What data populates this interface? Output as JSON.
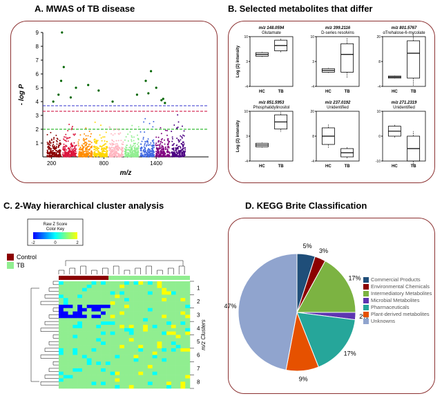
{
  "panelA": {
    "title": "A.  MWAS of TB disease",
    "xlabel": "m/z",
    "ylabel": "- log P",
    "xlim": [
      100,
      2000
    ],
    "ylim": [
      0,
      9
    ],
    "xticks": [
      200,
      800,
      1400
    ],
    "yticks": [
      1,
      2,
      3,
      4,
      5,
      6,
      7,
      8,
      9
    ],
    "threshold_lines": [
      {
        "y": 2.0,
        "color": "#00aa00",
        "dash": "4,2"
      },
      {
        "y": 3.3,
        "color": "#cc0033",
        "dash": "4,2"
      },
      {
        "y": 3.7,
        "color": "#3333cc",
        "dash": "4,2"
      }
    ],
    "cluster_colors": [
      "#8B0000",
      "#DC143C",
      "#FF8C00",
      "#FFD700",
      "#FFB6C1",
      "#90EE90",
      "#4169E1",
      "#800080",
      "#4B0082"
    ],
    "significant_color": "#006400"
  },
  "panelB": {
    "title": "B.  Selected metabolites that differ",
    "plots": [
      {
        "mz": "m/z 148.0594",
        "name": "Glutamate",
        "ylabel": "Log (2) intensity",
        "hc_median": 5,
        "hc_low": 4.5,
        "hc_high": 5.5,
        "tb_median": 7.5,
        "tb_low": 6,
        "tb_high": 9,
        "ylim": [
          -4,
          10
        ]
      },
      {
        "mz": "m/z 399.2116",
        "name": "D-series resolvins",
        "ylabel": "",
        "hc_median": 0.5,
        "hc_low": 0,
        "hc_high": 1,
        "tb_median": 5,
        "tb_low": 0,
        "tb_high": 8,
        "ylim": [
          -4,
          10
        ]
      },
      {
        "mz": "m/z 801.5767",
        "name": "αTrehalose-6-mycolate",
        "ylabel": "",
        "hc_median": 0.5,
        "hc_low": 0,
        "hc_high": 1,
        "tb_median": 12,
        "tb_low": 0,
        "tb_high": 18,
        "ylim": [
          -4,
          20
        ]
      },
      {
        "mz": "m/z 851.5953",
        "name": "Phosphatidylinositol",
        "ylabel": "Log (2) intensity",
        "hc_median": 0.5,
        "hc_low": 0,
        "hc_high": 1,
        "tb_median": 7,
        "tb_low": 5,
        "tb_high": 9,
        "ylim": [
          -4,
          10
        ]
      },
      {
        "mz": "m/z 237.0192",
        "name": "Unidentified",
        "ylabel": "",
        "hc_median": 8,
        "hc_low": 4,
        "hc_high": 12,
        "tb_median": 0,
        "tb_low": -2,
        "tb_high": 2,
        "ylim": [
          -4,
          20
        ]
      },
      {
        "mz": "m/z 271.2319",
        "name": "Unidentified",
        "ylabel": "",
        "hc_median": 2,
        "hc_low": 0,
        "hc_high": 4,
        "tb_median": -5,
        "tb_low": -10,
        "tb_high": 0,
        "ylim": [
          -10,
          10
        ]
      }
    ],
    "xaxis_labels": [
      "HC",
      "TB"
    ]
  },
  "panelC": {
    "title": "C.  2-Way hierarchical cluster analysis",
    "colorkey_title": "Raw Z Score Color Key",
    "colorkey_range": [
      -2,
      0,
      2
    ],
    "legend": [
      {
        "label": "Control",
        "color": "#8B0000"
      },
      {
        "label": "TB",
        "color": "#90EE90"
      }
    ],
    "cluster_label": "m/z Clusters",
    "cluster_numbers": [
      1,
      2,
      3,
      4,
      5,
      6,
      7,
      8
    ],
    "heatmap_colors": {
      "low": "#0000FF",
      "mid": "#00FFFF",
      "high": "#FFFF00",
      "green": "#90EE90"
    }
  },
  "panelD": {
    "title": "D.  KEGG Brite Classification",
    "slices": [
      {
        "label": "Commercial Products",
        "percent": 5,
        "color": "#1F4E79"
      },
      {
        "label": "Environmental Chemicals",
        "percent": 3,
        "color": "#8B0000"
      },
      {
        "label": "Intermediatory Metabolites",
        "percent": 17,
        "color": "#7CB342"
      },
      {
        "label": "Microbial Metabolites",
        "percent": 2,
        "color": "#5E35B1"
      },
      {
        "label": "Pharmaceuticals",
        "percent": 17,
        "color": "#26A69A"
      },
      {
        "label": "Plant-derived metabolites",
        "percent": 9,
        "color": "#E65100"
      },
      {
        "label": "Unknowns",
        "percent": 47,
        "color": "#90A4CE"
      }
    ]
  }
}
